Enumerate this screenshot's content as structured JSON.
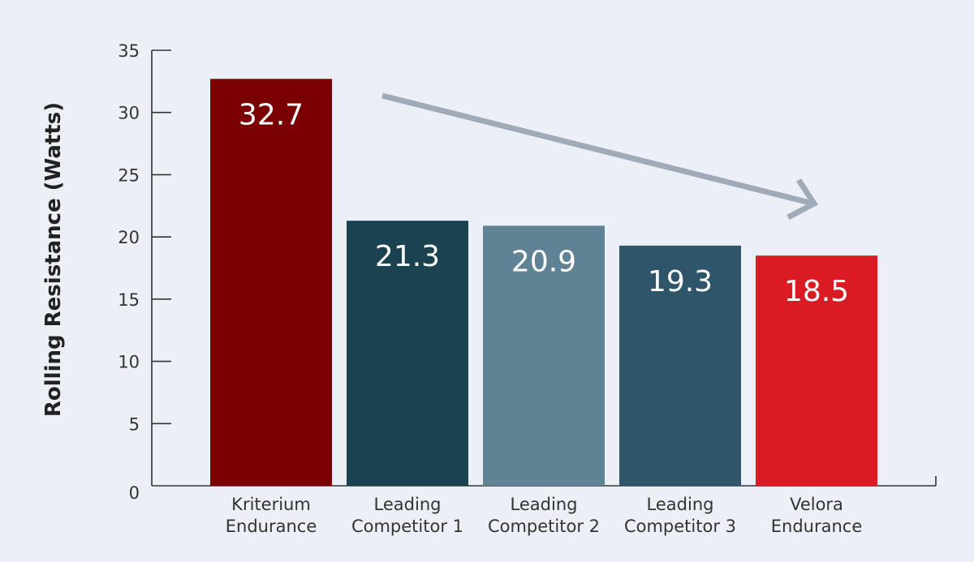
{
  "chart_data": {
    "type": "bar",
    "title": "",
    "xlabel": "",
    "ylabel": "Rolling Resistance (Watts)",
    "ylim": [
      0,
      35
    ],
    "yticks": [
      0,
      5,
      10,
      15,
      20,
      25,
      30,
      35
    ],
    "grid": false,
    "categories": [
      [
        "Kriterium",
        "Endurance"
      ],
      [
        "Leading",
        "Competitor 1"
      ],
      [
        "Leading",
        "Competitor 2"
      ],
      [
        "Leading",
        "Competitor 3"
      ],
      [
        "Velora",
        "Endurance"
      ]
    ],
    "values": [
      32.7,
      21.3,
      20.9,
      19.3,
      18.5
    ],
    "value_labels": [
      "32.7",
      "21.3",
      "20.9",
      "19.3",
      "18.5"
    ],
    "bar_colors": [
      "#7A0003",
      "#1B4250",
      "#5F8295",
      "#2E5569",
      "#D91C24"
    ],
    "annotation": {
      "type": "arrow",
      "direction": "decreasing",
      "color": "#A0AAB8"
    },
    "background_color": "#ECEFF6",
    "axis_color": "#333333"
  }
}
